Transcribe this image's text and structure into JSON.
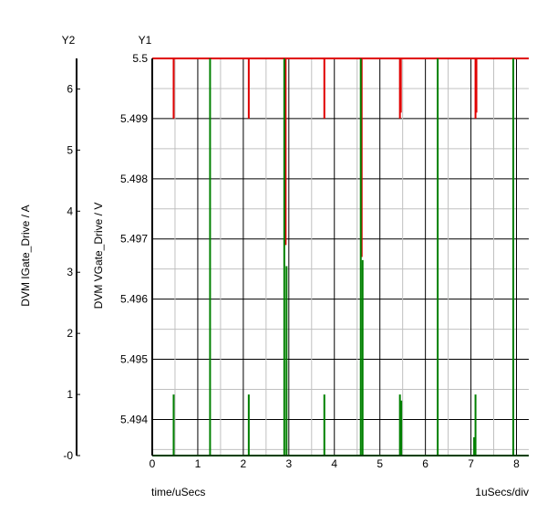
{
  "chart_data": {
    "type": "line",
    "y1_label": "Y1",
    "y2_label": "Y2",
    "y1_axis_title": "DVM VGate_Drive / V",
    "y2_axis_title": "DVM IGate_Drive / A",
    "x_label": "time/uSecs",
    "x_scale_label": "1uSecs/div",
    "xlim": [
      0,
      8.27
    ],
    "y1lim": [
      5.4934,
      5.5
    ],
    "y2lim": [
      0,
      6.5
    ],
    "x_ticks": [
      "0",
      "1",
      "2",
      "3",
      "4",
      "5",
      "6",
      "7",
      "8"
    ],
    "y1_ticks": [
      "5.494",
      "5.495",
      "5.496",
      "5.497",
      "5.498",
      "5.499",
      "5.5"
    ],
    "y2_ticks": [
      "-0",
      "1",
      "2",
      "3",
      "4",
      "5",
      "6"
    ],
    "series": [
      {
        "color": "#e00000",
        "axis": "y1",
        "baseline": 5.5,
        "spikes": [
          {
            "x": 0.47,
            "min": 5.499
          },
          {
            "x": 2.12,
            "min": 5.499
          },
          {
            "x": 2.93,
            "min": 5.4969
          },
          {
            "x": 3.78,
            "min": 5.499
          },
          {
            "x": 4.6,
            "min": 5.4967
          },
          {
            "x": 5.44,
            "min": 5.499
          },
          {
            "x": 5.46,
            "min": 5.4991
          },
          {
            "x": 7.1,
            "min": 5.499
          },
          {
            "x": 7.12,
            "min": 5.4991
          }
        ]
      },
      {
        "color": "#008000",
        "axis": "y2",
        "baseline": 0,
        "spikes": [
          {
            "x": 0.47,
            "max": 1.0
          },
          {
            "x": 1.27,
            "max": 6.5
          },
          {
            "x": 2.12,
            "max": 1.0
          },
          {
            "x": 2.9,
            "max": 6.5
          },
          {
            "x": 2.95,
            "max": 3.1
          },
          {
            "x": 3.78,
            "max": 1.0
          },
          {
            "x": 4.58,
            "max": 6.5
          },
          {
            "x": 4.62,
            "max": 3.2
          },
          {
            "x": 5.44,
            "max": 1.0
          },
          {
            "x": 5.47,
            "max": 0.9
          },
          {
            "x": 6.27,
            "max": 6.5
          },
          {
            "x": 7.1,
            "max": 1.0
          },
          {
            "x": 7.07,
            "max": 0.3
          },
          {
            "x": 7.93,
            "max": 6.5
          }
        ]
      }
    ]
  }
}
